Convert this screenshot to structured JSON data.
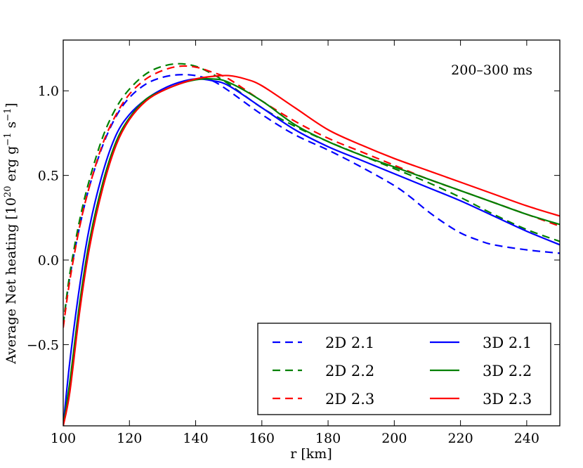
{
  "chart_data": {
    "type": "line",
    "title": "",
    "annotation": "200–300 ms",
    "xlabel": "r [km]",
    "ylabel": "Average Net heating [10^20 erg g^-1 s^-1]",
    "xlim": [
      100,
      250
    ],
    "ylim": [
      -0.98,
      1.3
    ],
    "x_ticks": [
      100,
      120,
      140,
      160,
      180,
      200,
      220,
      240
    ],
    "x_tick_labels": [
      "100",
      "120",
      "140",
      "160",
      "180",
      "200",
      "220",
      "240"
    ],
    "y_ticks": [
      -0.5,
      0.0,
      0.5,
      1.0
    ],
    "y_tick_labels": [
      "−0.5",
      "0.0",
      "0.5",
      "1.0"
    ],
    "legend_position": "lower-right",
    "colors": {
      "blue": "#0000ff",
      "green": "#008000",
      "red": "#ff0000"
    },
    "series": [
      {
        "name": "2D 2.1",
        "color": "#0000ff",
        "style": "dashed",
        "x": [
          100,
          102,
          105,
          108,
          112,
          116,
          120,
          125,
          130,
          135,
          140,
          145,
          150,
          160,
          170,
          180,
          190,
          200,
          205,
          210,
          215,
          220,
          225,
          230,
          240,
          250
        ],
        "y": [
          -0.38,
          -0.1,
          0.2,
          0.44,
          0.68,
          0.85,
          0.96,
          1.04,
          1.08,
          1.095,
          1.09,
          1.06,
          1.0,
          0.86,
          0.74,
          0.65,
          0.55,
          0.44,
          0.37,
          0.29,
          0.22,
          0.16,
          0.12,
          0.09,
          0.06,
          0.04
        ]
      },
      {
        "name": "2D 2.2",
        "color": "#008000",
        "style": "dashed",
        "x": [
          100,
          102,
          105,
          108,
          112,
          116,
          120,
          125,
          130,
          135,
          140,
          145,
          150,
          160,
          170,
          180,
          190,
          200,
          210,
          220,
          230,
          240,
          250
        ],
        "y": [
          -0.38,
          -0.08,
          0.24,
          0.48,
          0.73,
          0.9,
          1.01,
          1.1,
          1.145,
          1.16,
          1.145,
          1.1,
          1.04,
          0.9,
          0.79,
          0.7,
          0.62,
          0.54,
          0.46,
          0.37,
          0.27,
          0.18,
          0.11
        ]
      },
      {
        "name": "2D 2.3",
        "color": "#ff0000",
        "style": "dashed",
        "x": [
          100,
          102,
          105,
          108,
          112,
          116,
          120,
          125,
          130,
          135,
          140,
          145,
          150,
          160,
          170,
          180,
          190,
          200,
          210,
          220,
          230,
          240,
          250
        ],
        "y": [
          -0.4,
          -0.12,
          0.2,
          0.44,
          0.69,
          0.86,
          0.98,
          1.07,
          1.12,
          1.145,
          1.14,
          1.11,
          1.07,
          0.94,
          0.82,
          0.72,
          0.64,
          0.56,
          0.48,
          0.41,
          0.34,
          0.27,
          0.2
        ]
      },
      {
        "name": "3D 2.1",
        "color": "#0000ff",
        "style": "solid",
        "x": [
          100,
          102,
          105,
          108,
          112,
          116,
          120,
          125,
          130,
          135,
          140,
          145,
          150,
          160,
          170,
          180,
          190,
          200,
          210,
          220,
          230,
          240,
          250
        ],
        "y": [
          -0.98,
          -0.6,
          -0.15,
          0.2,
          0.52,
          0.74,
          0.86,
          0.95,
          1.01,
          1.05,
          1.07,
          1.06,
          1.03,
          0.9,
          0.77,
          0.67,
          0.59,
          0.51,
          0.43,
          0.35,
          0.26,
          0.17,
          0.09
        ]
      },
      {
        "name": "3D 2.2",
        "color": "#008000",
        "style": "solid",
        "x": [
          100,
          102,
          105,
          108,
          112,
          116,
          120,
          125,
          130,
          135,
          140,
          145,
          150,
          160,
          170,
          180,
          190,
          200,
          210,
          220,
          230,
          240,
          250
        ],
        "y": [
          -0.98,
          -0.72,
          -0.25,
          0.12,
          0.46,
          0.7,
          0.84,
          0.95,
          1.0,
          1.04,
          1.065,
          1.07,
          1.05,
          0.94,
          0.8,
          0.7,
          0.62,
          0.55,
          0.48,
          0.41,
          0.34,
          0.27,
          0.21
        ]
      },
      {
        "name": "3D 2.3",
        "color": "#ff0000",
        "style": "solid",
        "x": [
          100,
          102,
          105,
          108,
          112,
          116,
          120,
          125,
          130,
          135,
          140,
          145,
          150,
          155,
          160,
          170,
          180,
          190,
          200,
          210,
          220,
          230,
          240,
          250
        ],
        "y": [
          -0.98,
          -0.78,
          -0.3,
          0.08,
          0.43,
          0.68,
          0.83,
          0.94,
          1.0,
          1.04,
          1.07,
          1.085,
          1.09,
          1.07,
          1.03,
          0.9,
          0.77,
          0.68,
          0.6,
          0.53,
          0.46,
          0.39,
          0.32,
          0.26
        ]
      }
    ]
  }
}
